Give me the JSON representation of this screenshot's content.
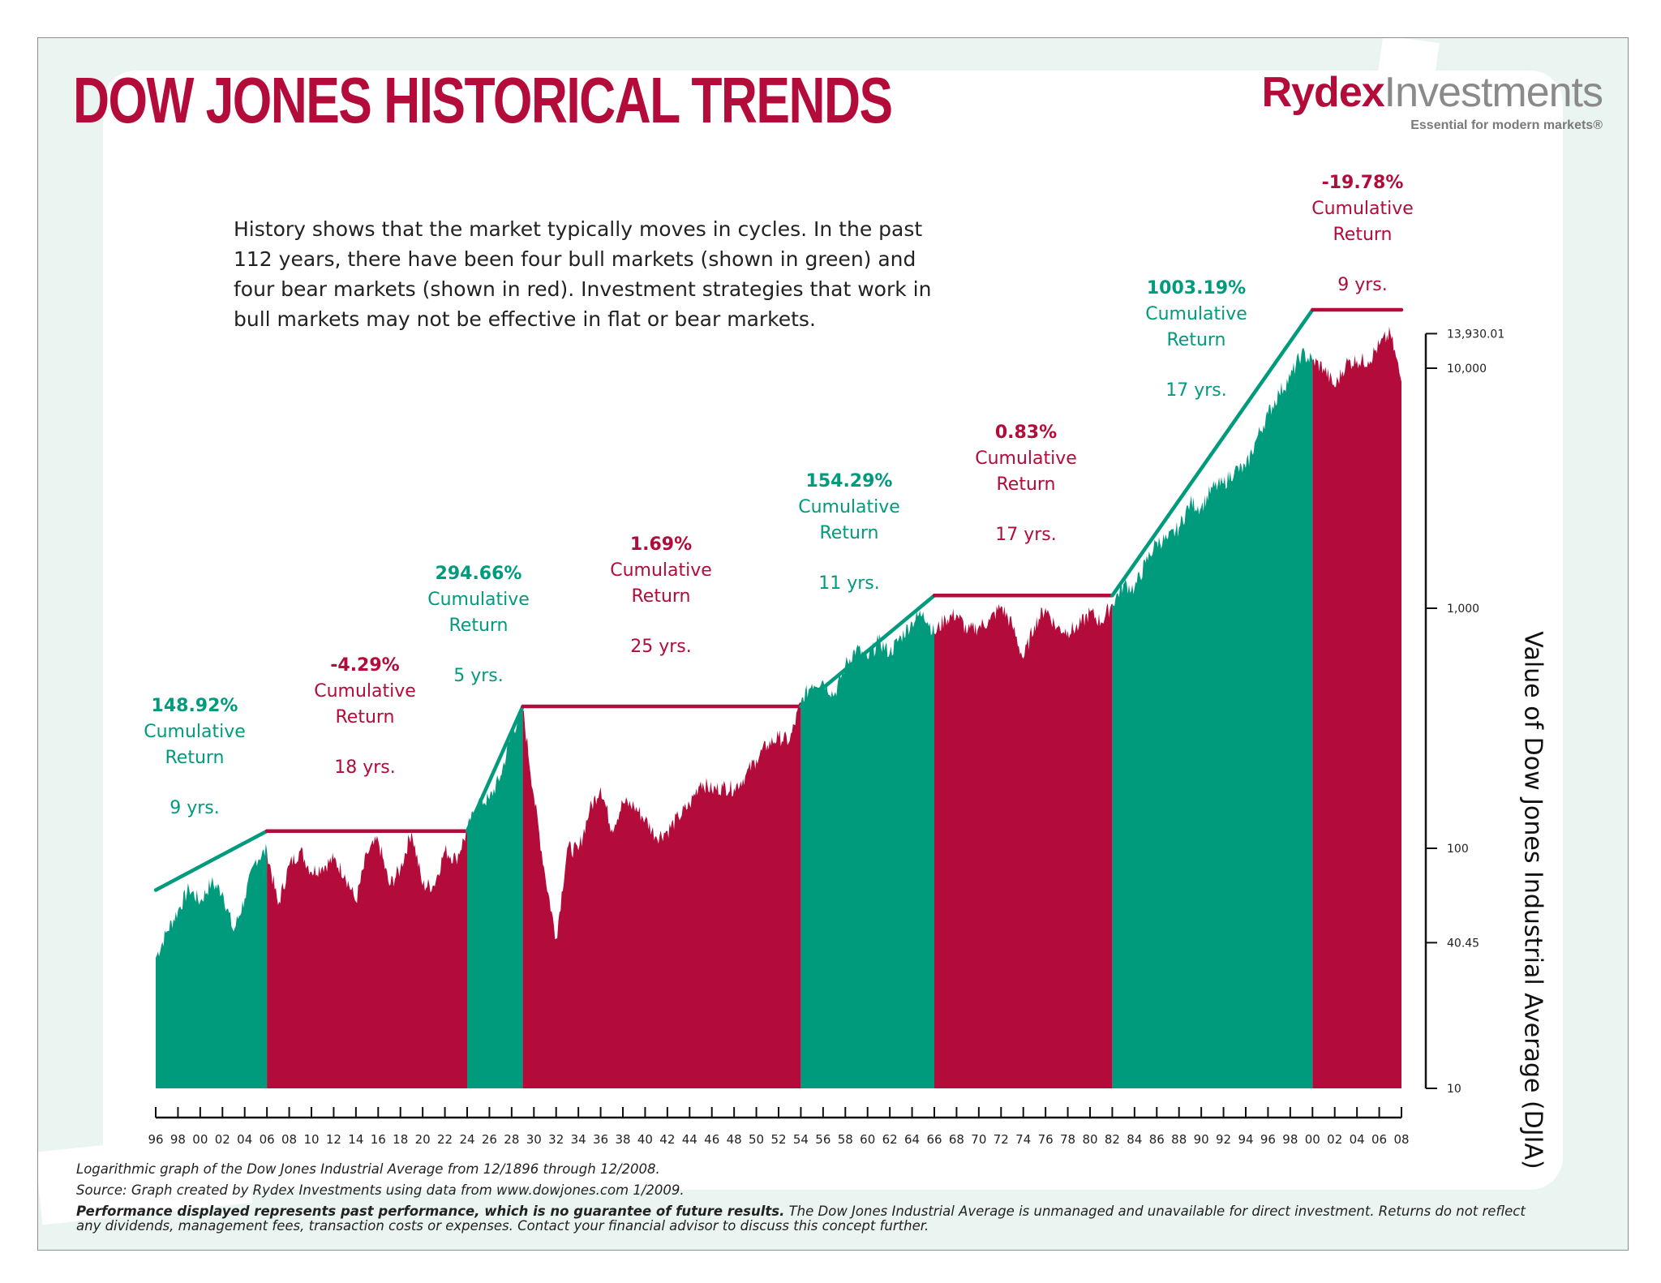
{
  "title": "DOW JONES HISTORICAL TRENDS",
  "logo": {
    "brand_part1": "Rydex",
    "brand_part2": "Investments",
    "tagline": "Essential for modern markets®"
  },
  "intro": "History shows that the market typically moves in cycles. In the past 112 years, there have been four bull markets (shown in green) and four bear markets (shown in red). Investment strategies that work in bull markets may not be effective in flat or bear markets.",
  "colors": {
    "bull": "#009b7d",
    "bear": "#b30b3a",
    "text": "#222222"
  },
  "footnotes": {
    "line1": "Logarithmic graph of the Dow Jones Industrial Average from 12/1896 through 12/2008.",
    "line2": "Source: Graph created by Rydex Investments using data from www.dowjones.com 1/2009.",
    "line3_bold": "Performance displayed represents past performance, which is no guarantee of future results.",
    "line3_rest": " The Dow Jones Industrial Average is unmanaged and unavailable for direct investment. Returns do not reflect",
    "line4": "any dividends, management fees, transaction costs or expenses. Contact your financial advisor to discuss this concept further."
  },
  "chart_data": {
    "type": "area",
    "ylabel": "Value of Dow Jones Industrial Average (DJIA)",
    "xlabel": "",
    "log_scale": true,
    "ylim": [
      10,
      14000
    ],
    "y_ticks": [
      {
        "value": 10,
        "label": "10"
      },
      {
        "value": 40.45,
        "label": "40.45"
      },
      {
        "value": 100,
        "label": "100"
      },
      {
        "value": 1000,
        "label": "1,000"
      },
      {
        "value": 10000,
        "label": "10,000"
      },
      {
        "value": 13930.01,
        "label": "13,930.01"
      }
    ],
    "x_range": [
      1896,
      2008
    ],
    "x_tick_labels": [
      "96",
      "98",
      "00",
      "02",
      "04",
      "06",
      "08",
      "10",
      "12",
      "14",
      "16",
      "18",
      "20",
      "22",
      "24",
      "26",
      "28",
      "30",
      "32",
      "34",
      "36",
      "38",
      "40",
      "42",
      "44",
      "46",
      "48",
      "50",
      "52",
      "54",
      "56",
      "58",
      "60",
      "62",
      "64",
      "66",
      "68",
      "70",
      "72",
      "74",
      "76",
      "78",
      "80",
      "82",
      "84",
      "86",
      "88",
      "90",
      "92",
      "94",
      "96",
      "98",
      "00",
      "02",
      "04",
      "06",
      "08"
    ],
    "x_tick_start_year": 1896,
    "x_tick_step": 2,
    "periods": [
      {
        "type": "bull",
        "start": 1896,
        "end": 1906,
        "return": "148.92%",
        "word1": "Cumulative",
        "word2": "Return",
        "years": "9 yrs."
      },
      {
        "type": "bear",
        "start": 1906,
        "end": 1924,
        "return": "-4.29%",
        "word1": "Cumulative",
        "word2": "Return",
        "years": "18 yrs."
      },
      {
        "type": "bull",
        "start": 1924,
        "end": 1929,
        "return": "294.66%",
        "word1": "Cumulative",
        "word2": "Return",
        "years": "5 yrs."
      },
      {
        "type": "bear",
        "start": 1929,
        "end": 1954,
        "return": "1.69%",
        "word1": "Cumulative",
        "word2": "Return",
        "years": "25 yrs."
      },
      {
        "type": "bull",
        "start": 1954,
        "end": 1966,
        "return": "154.29%",
        "word1": "Cumulative",
        "word2": "Return",
        "years": "11 yrs."
      },
      {
        "type": "bear",
        "start": 1966,
        "end": 1982,
        "return": "0.83%",
        "word1": "Cumulative",
        "word2": "Return",
        "years": "17 yrs."
      },
      {
        "type": "bull",
        "start": 1982,
        "end": 2000,
        "return": "1003.19%",
        "word1": "Cumulative",
        "word2": "Return",
        "years": "17 yrs."
      },
      {
        "type": "bear",
        "start": 2000,
        "end": 2008,
        "return": "-19.78%",
        "word1": "Cumulative",
        "word2": "Return",
        "years": "9 yrs."
      }
    ],
    "trend_lines": [
      {
        "type": "bull",
        "from": [
          1896,
          67
        ],
        "to": [
          1906,
          118
        ]
      },
      {
        "type": "bear",
        "from": [
          1906,
          118
        ],
        "to": [
          1924,
          118
        ]
      },
      {
        "type": "bull",
        "from": [
          1924,
          118
        ],
        "to": [
          1929,
          390
        ]
      },
      {
        "type": "bear",
        "from": [
          1929,
          390
        ],
        "to": [
          1954,
          390
        ]
      },
      {
        "type": "bull",
        "from": [
          1954,
          390
        ],
        "to": [
          1966,
          1130
        ]
      },
      {
        "type": "bear",
        "from": [
          1966,
          1130
        ],
        "to": [
          1982,
          1130
        ]
      },
      {
        "type": "bull",
        "from": [
          1982,
          1130
        ],
        "to": [
          2000,
          17500
        ]
      },
      {
        "type": "bear",
        "from": [
          2000,
          17500
        ],
        "to": [
          2008,
          17500
        ]
      }
    ],
    "series": [
      {
        "values": [
          [
            1896,
            35
          ],
          [
            1897,
            45
          ],
          [
            1898,
            55
          ],
          [
            1899,
            68
          ],
          [
            1900,
            60
          ],
          [
            1901,
            72
          ],
          [
            1902,
            66
          ],
          [
            1903,
            45
          ],
          [
            1904,
            62
          ],
          [
            1905,
            90
          ],
          [
            1906,
            98
          ],
          [
            1907,
            58
          ],
          [
            1908,
            85
          ],
          [
            1909,
            98
          ],
          [
            1910,
            80
          ],
          [
            1911,
            84
          ],
          [
            1912,
            90
          ],
          [
            1913,
            78
          ],
          [
            1914,
            60
          ],
          [
            1915,
            95
          ],
          [
            1916,
            108
          ],
          [
            1917,
            70
          ],
          [
            1918,
            82
          ],
          [
            1919,
            118
          ],
          [
            1920,
            70
          ],
          [
            1921,
            70
          ],
          [
            1922,
            98
          ],
          [
            1923,
            90
          ],
          [
            1924,
            118
          ],
          [
            1925,
            156
          ],
          [
            1926,
            160
          ],
          [
            1927,
            200
          ],
          [
            1928,
            300
          ],
          [
            1929,
            381
          ],
          [
            1930,
            165
          ],
          [
            1931,
            78
          ],
          [
            1932,
            42
          ],
          [
            1933,
            100
          ],
          [
            1934,
            98
          ],
          [
            1935,
            144
          ],
          [
            1936,
            180
          ],
          [
            1937,
            120
          ],
          [
            1938,
            155
          ],
          [
            1939,
            150
          ],
          [
            1940,
            132
          ],
          [
            1941,
            112
          ],
          [
            1942,
            118
          ],
          [
            1943,
            135
          ],
          [
            1944,
            152
          ],
          [
            1945,
            190
          ],
          [
            1946,
            175
          ],
          [
            1947,
            180
          ],
          [
            1948,
            178
          ],
          [
            1949,
            200
          ],
          [
            1950,
            235
          ],
          [
            1951,
            270
          ],
          [
            1952,
            290
          ],
          [
            1953,
            280
          ],
          [
            1954,
            404
          ],
          [
            1955,
            485
          ],
          [
            1956,
            500
          ],
          [
            1957,
            435
          ],
          [
            1958,
            580
          ],
          [
            1959,
            680
          ],
          [
            1960,
            615
          ],
          [
            1961,
            730
          ],
          [
            1962,
            652
          ],
          [
            1963,
            762
          ],
          [
            1964,
            875
          ],
          [
            1965,
            969
          ],
          [
            1966,
            785
          ],
          [
            1967,
            905
          ],
          [
            1968,
            945
          ],
          [
            1969,
            800
          ],
          [
            1970,
            839
          ],
          [
            1971,
            890
          ],
          [
            1972,
            1020
          ],
          [
            1973,
            850
          ],
          [
            1974,
            616
          ],
          [
            1975,
            852
          ],
          [
            1976,
            1004
          ],
          [
            1977,
            831
          ],
          [
            1978,
            805
          ],
          [
            1979,
            838
          ],
          [
            1980,
            963
          ],
          [
            1981,
            875
          ],
          [
            1982,
            1046
          ],
          [
            1983,
            1258
          ],
          [
            1984,
            1211
          ],
          [
            1985,
            1546
          ],
          [
            1986,
            1895
          ],
          [
            1987,
            1938
          ],
          [
            1988,
            2168
          ],
          [
            1989,
            2753
          ],
          [
            1990,
            2633
          ],
          [
            1991,
            3168
          ],
          [
            1992,
            3301
          ],
          [
            1993,
            3754
          ],
          [
            1994,
            3834
          ],
          [
            1995,
            5117
          ],
          [
            1996,
            6448
          ],
          [
            1997,
            7908
          ],
          [
            1998,
            9181
          ],
          [
            1999,
            11497
          ],
          [
            2000,
            10787
          ],
          [
            2001,
            10021
          ],
          [
            2002,
            8341
          ],
          [
            2003,
            10453
          ],
          [
            2004,
            10783
          ],
          [
            2005,
            10717
          ],
          [
            2006,
            12463
          ],
          [
            2007,
            13930
          ],
          [
            2008,
            8776
          ]
        ]
      }
    ]
  }
}
